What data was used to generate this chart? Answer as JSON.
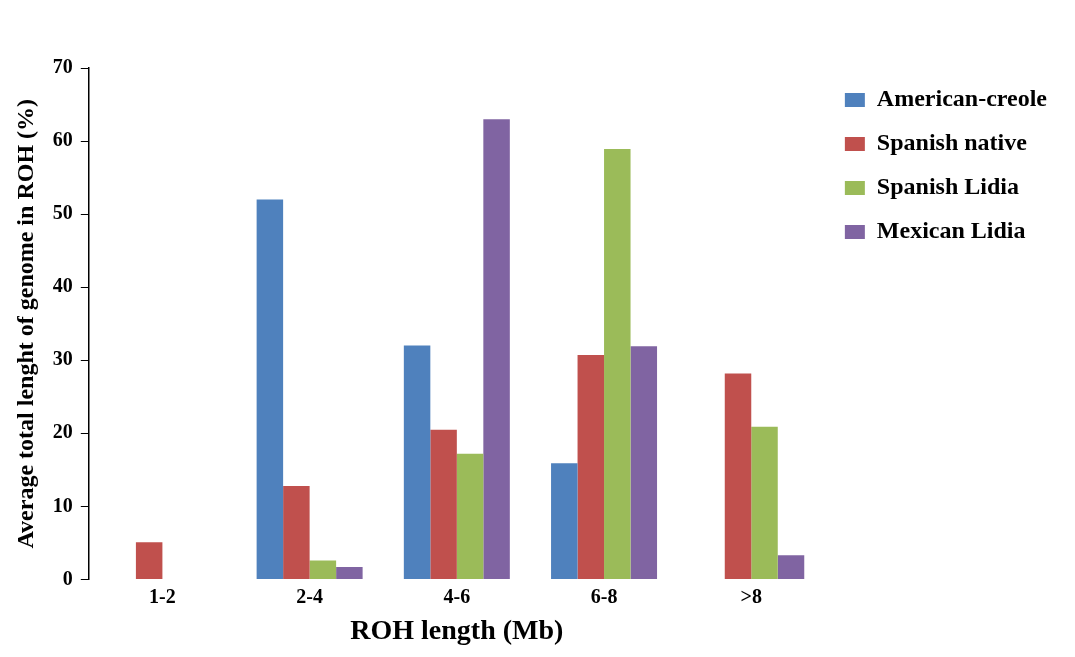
{
  "chart_data": {
    "type": "bar",
    "xlabel": "ROH length (Mb)",
    "ylabel": "Average total lenght of genome in ROH (%)",
    "categories": [
      "1-2",
      "2-4",
      "4-6",
      "6-8",
      ">8"
    ],
    "series": [
      {
        "name": "American-creole",
        "color": "#4f81bd",
        "values": [
          0,
          52,
          32,
          15.9,
          0
        ]
      },
      {
        "name": "Spanish native",
        "color": "#c0504d",
        "values": [
          5.1,
          12.8,
          20.5,
          30.7,
          28.2
        ]
      },
      {
        "name": "Spanish Lidia",
        "color": "#9bbb59",
        "values": [
          0,
          2.6,
          17.2,
          58.9,
          20.9
        ]
      },
      {
        "name": "Mexican Lidia",
        "color": "#8064a2",
        "values": [
          0,
          1.7,
          63,
          31.9,
          3.3
        ]
      }
    ],
    "ylim": [
      0,
      70
    ],
    "yticks": [
      0,
      10,
      20,
      30,
      40,
      50,
      60,
      70
    ],
    "grid": false,
    "legend": "right"
  }
}
